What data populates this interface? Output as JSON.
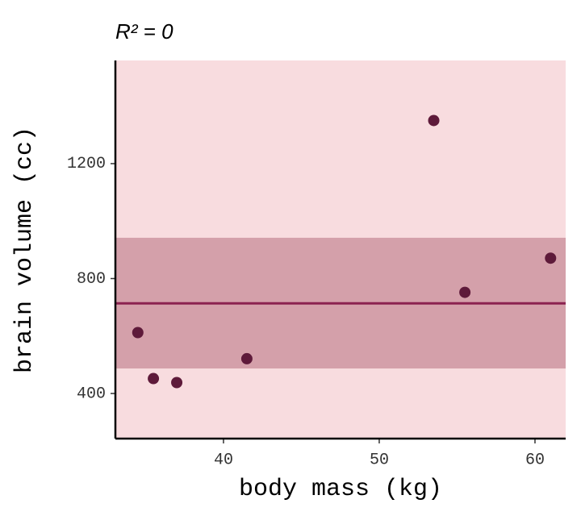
{
  "chart_data": {
    "type": "scatter",
    "title": "R² = 0",
    "x_label": "body mass (kg)",
    "y_label": "brain volume (cc)",
    "x": [
      37.0,
      35.5,
      34.5,
      41.5,
      55.5,
      61.0,
      53.5
    ],
    "y": [
      438,
      452,
      612,
      521,
      752,
      871,
      1350
    ],
    "point_color": "#5e1a3a",
    "fit": {
      "value": 713.7,
      "lower": 487,
      "upper": 942,
      "color": "#8b2250",
      "band_color": "#d4a0aa"
    },
    "panel_color": "#f8dcdf",
    "xlim": [
      33.06,
      61.97
    ],
    "xticks": [
      40,
      50,
      60
    ],
    "ylim": [
      243,
      1559
    ],
    "yticks": [
      400,
      800,
      1200
    ]
  }
}
